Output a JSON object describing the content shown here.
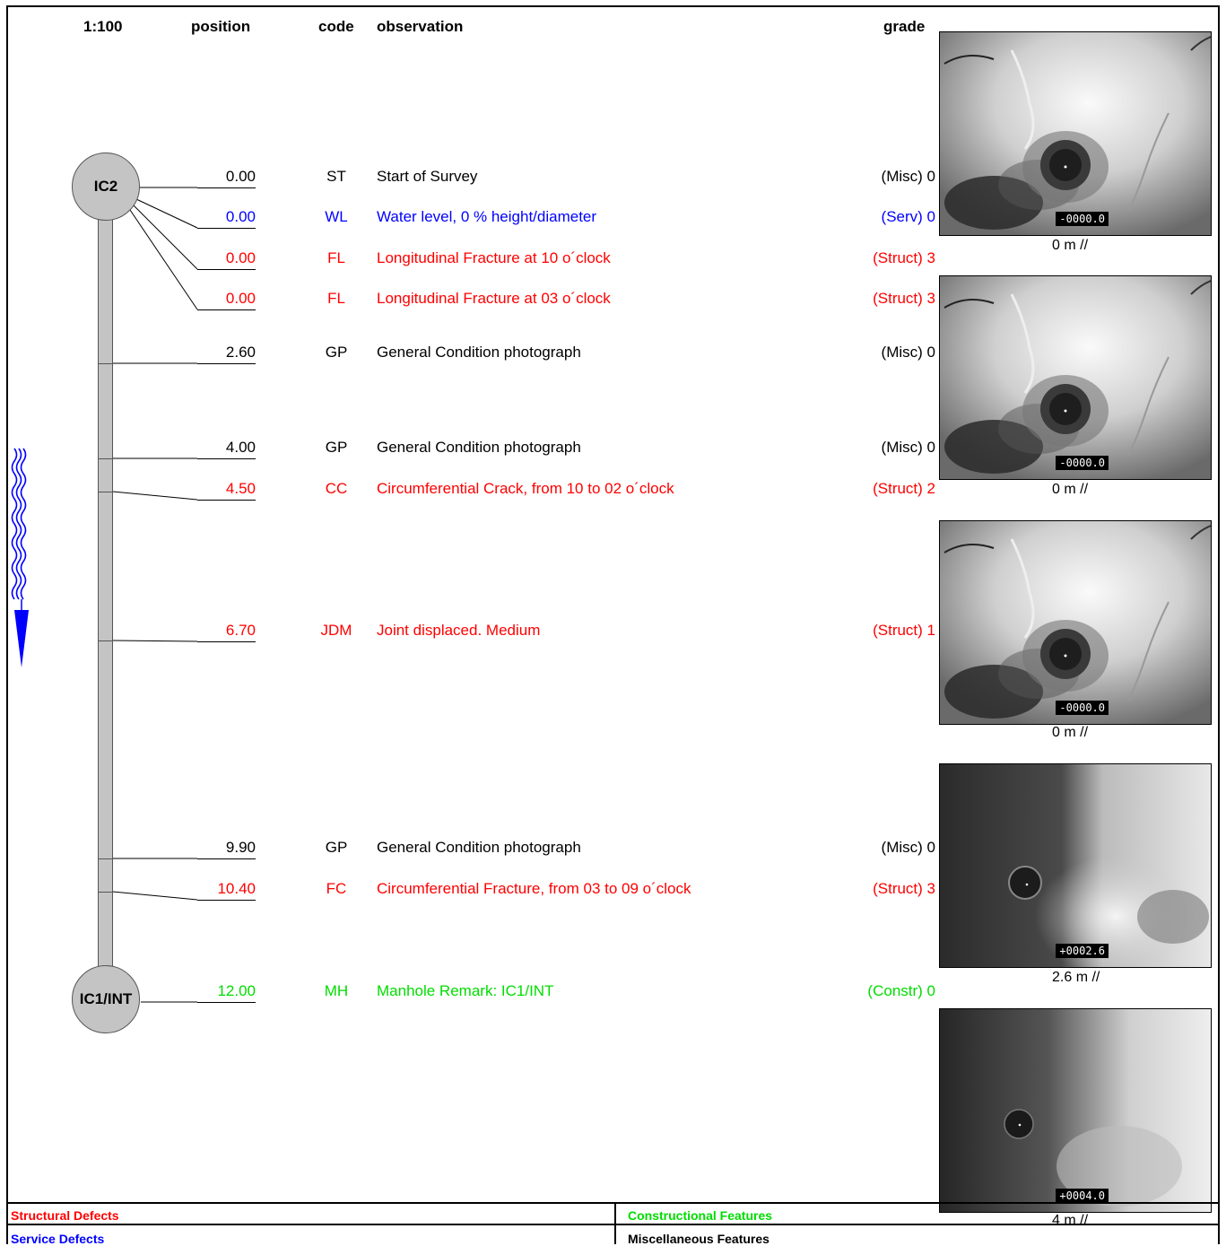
{
  "header": {
    "scale": "1:100",
    "position": "position",
    "code": "code",
    "observation": "observation",
    "grade": "grade"
  },
  "nodes": {
    "start": "IC2",
    "end": "IC1/INT"
  },
  "colors": {
    "structural": "#ff0000",
    "service": "#0000ff",
    "constructional": "#00dd00",
    "misc": "#000000"
  },
  "rows": [
    {
      "position": "0.00",
      "code": "ST",
      "observation": "Start of Survey",
      "grade": "(Misc) 0",
      "category": "misc"
    },
    {
      "position": "0.00",
      "code": "WL",
      "observation": "Water level, 0  % height/diameter",
      "grade": "(Serv) 0",
      "category": "service"
    },
    {
      "position": "0.00",
      "code": "FL",
      "observation": "Longitudinal Fracture at 10 o´clock",
      "grade": "(Struct) 3",
      "category": "structural"
    },
    {
      "position": "0.00",
      "code": "FL",
      "observation": "Longitudinal Fracture at 03 o´clock",
      "grade": "(Struct) 3",
      "category": "structural"
    },
    {
      "position": "2.60",
      "code": "GP",
      "observation": "General Condition photograph",
      "grade": "(Misc) 0",
      "category": "misc"
    },
    {
      "position": "4.00",
      "code": "GP",
      "observation": "General Condition photograph",
      "grade": "(Misc) 0",
      "category": "misc"
    },
    {
      "position": "4.50",
      "code": "CC",
      "observation": "Circumferential Crack, from 10 to 02 o´clock",
      "grade": "(Struct) 2",
      "category": "structural"
    },
    {
      "position": "6.70",
      "code": "JDM",
      "observation": "Joint displaced. Medium",
      "grade": "(Struct) 1",
      "category": "structural"
    },
    {
      "position": "9.90",
      "code": "GP",
      "observation": "General Condition photograph",
      "grade": "(Misc) 0",
      "category": "misc"
    },
    {
      "position": "10.40",
      "code": "FC",
      "observation": "Circumferential Fracture, from 03 to 09 o´clock",
      "grade": "(Struct) 3",
      "category": "structural"
    },
    {
      "position": "12.00",
      "code": "MH",
      "observation": "Manhole Remark: IC1/INT",
      "grade": "(Constr) 0",
      "category": "constructional"
    }
  ],
  "photos": [
    {
      "stamp": "-0000.0",
      "caption": "0 m //",
      "scene": "a"
    },
    {
      "stamp": "-0000.0",
      "caption": "0 m //",
      "scene": "a"
    },
    {
      "stamp": "-0000.0",
      "caption": "0 m //",
      "scene": "a"
    },
    {
      "stamp": "+0002.6",
      "caption": "2.6 m //",
      "scene": "b"
    },
    {
      "stamp": "+0004.0",
      "caption": "4 m //",
      "scene": "c"
    }
  ],
  "legend": {
    "structural": "Structural Defects",
    "service": "Service Defects",
    "constructional": "Constructional Features",
    "misc": "Miscellaneous Features"
  }
}
